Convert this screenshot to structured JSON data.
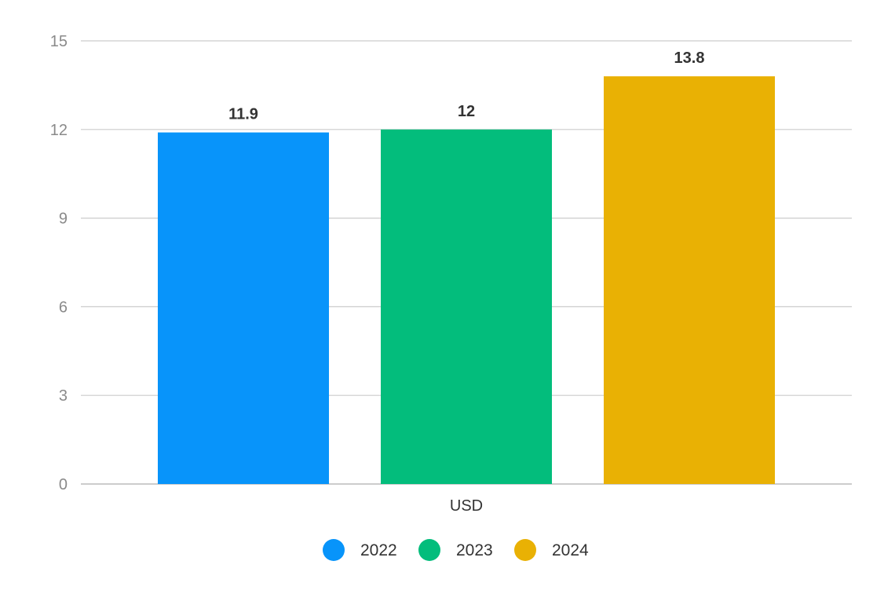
{
  "chart_data": {
    "type": "bar",
    "categories": [
      "USD"
    ],
    "series": [
      {
        "name": "2022",
        "values": [
          11.9
        ],
        "color": "#0894fa"
      },
      {
        "name": "2023",
        "values": [
          12
        ],
        "color": "#03bd7c"
      },
      {
        "name": "2024",
        "values": [
          13.8
        ],
        "color": "#e9b104"
      }
    ],
    "ylim": [
      0,
      15
    ],
    "yticks": [
      0,
      3,
      6,
      9,
      12,
      15
    ],
    "grid": true,
    "data_labels": true,
    "legend_position": "bottom-center",
    "title": "",
    "xlabel": "",
    "ylabel": ""
  }
}
